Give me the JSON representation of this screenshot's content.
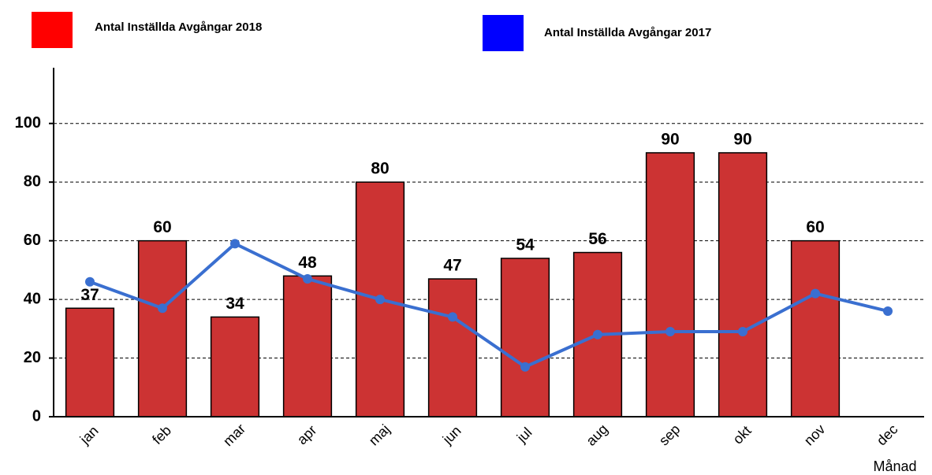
{
  "chart_data": {
    "type": "bar",
    "categories": [
      "jan",
      "feb",
      "mar",
      "apr",
      "maj",
      "jun",
      "jul",
      "aug",
      "sep",
      "okt",
      "nov",
      "dec"
    ],
    "x_label": "Månad",
    "series": [
      {
        "name": "Antal Inställda Avgångar 2018",
        "type": "bar",
        "color": "#cc3333",
        "legend_color": "#ff0000",
        "values": [
          37,
          60,
          34,
          48,
          80,
          47,
          54,
          56,
          90,
          90,
          60,
          null
        ]
      },
      {
        "name": "Antal Inställda Avgångar 2017",
        "type": "line",
        "color": "#3a6fd0",
        "legend_color": "#0000ff",
        "values": [
          46,
          37,
          59,
          47,
          40,
          34,
          17,
          28,
          29,
          29,
          42,
          36
        ]
      }
    ],
    "ylim": [
      0,
      119
    ],
    "yticks": [
      0,
      20,
      40,
      60,
      80,
      100
    ],
    "grid": true
  }
}
